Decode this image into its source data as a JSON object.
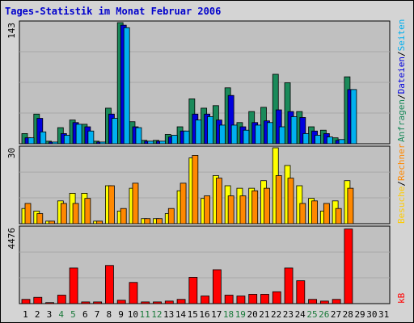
{
  "title": "Tages-Statistik im Monat Februar 2006",
  "colors": {
    "background": "#d4d4d4",
    "plot": "#c0c0c0",
    "grid": "#a8a8a8",
    "title": "#0000cc",
    "anfragen": "#1a8a5a",
    "dateien": "#0000dd",
    "seiten": "#00b0f0",
    "besuche": "#ffff00",
    "rechner": "#ff8800",
    "kb": "#ff0000",
    "weekend_day": "#1a7a3a",
    "weekday": "#000000"
  },
  "right_labels": {
    "top": [
      {
        "text": "Anfragen",
        "color": "#1a8a5a"
      },
      {
        "text": "/",
        "color": "#000000"
      },
      {
        "text": "Dateien",
        "color": "#0000dd"
      },
      {
        "text": "/",
        "color": "#000000"
      },
      {
        "text": "Seiten",
        "color": "#00b0f0"
      }
    ],
    "middle": [
      {
        "text": "Besuche",
        "color": "#ffcc00"
      },
      {
        "text": "/",
        "color": "#000000"
      },
      {
        "text": "Rechner",
        "color": "#ff8800"
      }
    ],
    "bottom": [
      {
        "text": "kB",
        "color": "#ff0000"
      }
    ]
  },
  "chart_data": [
    {
      "type": "bar",
      "panel": "top",
      "ymax_label": "143",
      "ylim": [
        0,
        143
      ],
      "categories": [
        "1",
        "2",
        "3",
        "4",
        "5",
        "6",
        "7",
        "8",
        "9",
        "10",
        "11",
        "12",
        "13",
        "14",
        "15",
        "16",
        "17",
        "18",
        "19",
        "20",
        "21",
        "22",
        "23",
        "24",
        "25",
        "26",
        "27",
        "28",
        "29",
        "30",
        "31"
      ],
      "series": [
        {
          "name": "Anfragen",
          "values": [
            12,
            35,
            3,
            19,
            28,
            23,
            3,
            42,
            143,
            26,
            4,
            4,
            11,
            20,
            53,
            42,
            45,
            66,
            25,
            38,
            43,
            82,
            72,
            38,
            20,
            16,
            7,
            79,
            0,
            0,
            0
          ]
        },
        {
          "name": "Dateien",
          "values": [
            7,
            30,
            2,
            12,
            25,
            20,
            2,
            35,
            140,
            20,
            3,
            3,
            8,
            15,
            35,
            35,
            28,
            57,
            20,
            25,
            27,
            40,
            38,
            31,
            15,
            12,
            4,
            64,
            0,
            0,
            0
          ]
        },
        {
          "name": "Seiten",
          "values": [
            7,
            14,
            2,
            10,
            23,
            15,
            2,
            30,
            137,
            19,
            3,
            3,
            10,
            15,
            28,
            32,
            22,
            22,
            16,
            22,
            25,
            20,
            32,
            12,
            10,
            8,
            5,
            64,
            0,
            0,
            0
          ]
        }
      ]
    },
    {
      "type": "bar",
      "panel": "middle",
      "ymax_label": "30",
      "ylim": [
        0,
        30
      ],
      "categories": [
        "1",
        "2",
        "3",
        "4",
        "5",
        "6",
        "7",
        "8",
        "9",
        "10",
        "11",
        "12",
        "13",
        "14",
        "15",
        "16",
        "17",
        "18",
        "19",
        "20",
        "21",
        "22",
        "23",
        "24",
        "25",
        "26",
        "27",
        "28",
        "29",
        "30",
        "31"
      ],
      "series": [
        {
          "name": "Besuche",
          "values": [
            6,
            5,
            1,
            9,
            12,
            12,
            1,
            15,
            5,
            14,
            2,
            2,
            4,
            13,
            26,
            10,
            19,
            15,
            14,
            14,
            17,
            30,
            23,
            15,
            10,
            5,
            9,
            17,
            0,
            0,
            0
          ]
        },
        {
          "name": "Rechner",
          "values": [
            8,
            4,
            1,
            8,
            8,
            10,
            1,
            15,
            6,
            16,
            2,
            2,
            6,
            16,
            27,
            11,
            18,
            11,
            11,
            13,
            14,
            19,
            18,
            8,
            9,
            8,
            6,
            14,
            0,
            0,
            0
          ]
        }
      ]
    },
    {
      "type": "bar",
      "panel": "bottom",
      "ymax_label": "4476",
      "ylim": [
        0,
        4476
      ],
      "categories": [
        "1",
        "2",
        "3",
        "4",
        "5",
        "6",
        "7",
        "8",
        "9",
        "10",
        "11",
        "12",
        "13",
        "14",
        "15",
        "16",
        "17",
        "18",
        "19",
        "20",
        "21",
        "22",
        "23",
        "24",
        "25",
        "26",
        "27",
        "28",
        "29",
        "30",
        "31"
      ],
      "series": [
        {
          "name": "kB",
          "values": [
            250,
            370,
            60,
            500,
            2100,
            100,
            100,
            2250,
            200,
            1250,
            100,
            100,
            150,
            250,
            1550,
            450,
            2000,
            500,
            450,
            550,
            550,
            700,
            2100,
            1350,
            250,
            150,
            250,
            4400,
            0,
            0,
            0
          ]
        }
      ]
    }
  ],
  "x_day_labels": [
    {
      "text": "1",
      "weekend": false
    },
    {
      "text": "2",
      "weekend": false
    },
    {
      "text": "3",
      "weekend": false
    },
    {
      "text": "4",
      "weekend": true
    },
    {
      "text": "5",
      "weekend": true
    },
    {
      "text": "6",
      "weekend": false
    },
    {
      "text": "7",
      "weekend": false
    },
    {
      "text": "8",
      "weekend": false
    },
    {
      "text": "9",
      "weekend": false
    },
    {
      "text": "10",
      "weekend": false
    },
    {
      "text": "11",
      "weekend": true
    },
    {
      "text": "12",
      "weekend": true
    },
    {
      "text": "13",
      "weekend": false
    },
    {
      "text": "14",
      "weekend": false
    },
    {
      "text": "15",
      "weekend": false
    },
    {
      "text": "16",
      "weekend": false
    },
    {
      "text": "17",
      "weekend": false
    },
    {
      "text": "18",
      "weekend": true
    },
    {
      "text": "19",
      "weekend": true
    },
    {
      "text": "20",
      "weekend": false
    },
    {
      "text": "21",
      "weekend": false
    },
    {
      "text": "22",
      "weekend": false
    },
    {
      "text": "23",
      "weekend": false
    },
    {
      "text": "24",
      "weekend": false
    },
    {
      "text": "25",
      "weekend": true
    },
    {
      "text": "26",
      "weekend": true
    },
    {
      "text": "27",
      "weekend": false
    },
    {
      "text": "28",
      "weekend": false
    },
    {
      "text": "29",
      "weekend": false
    },
    {
      "text": "30",
      "weekend": false
    },
    {
      "text": "31",
      "weekend": false
    }
  ]
}
